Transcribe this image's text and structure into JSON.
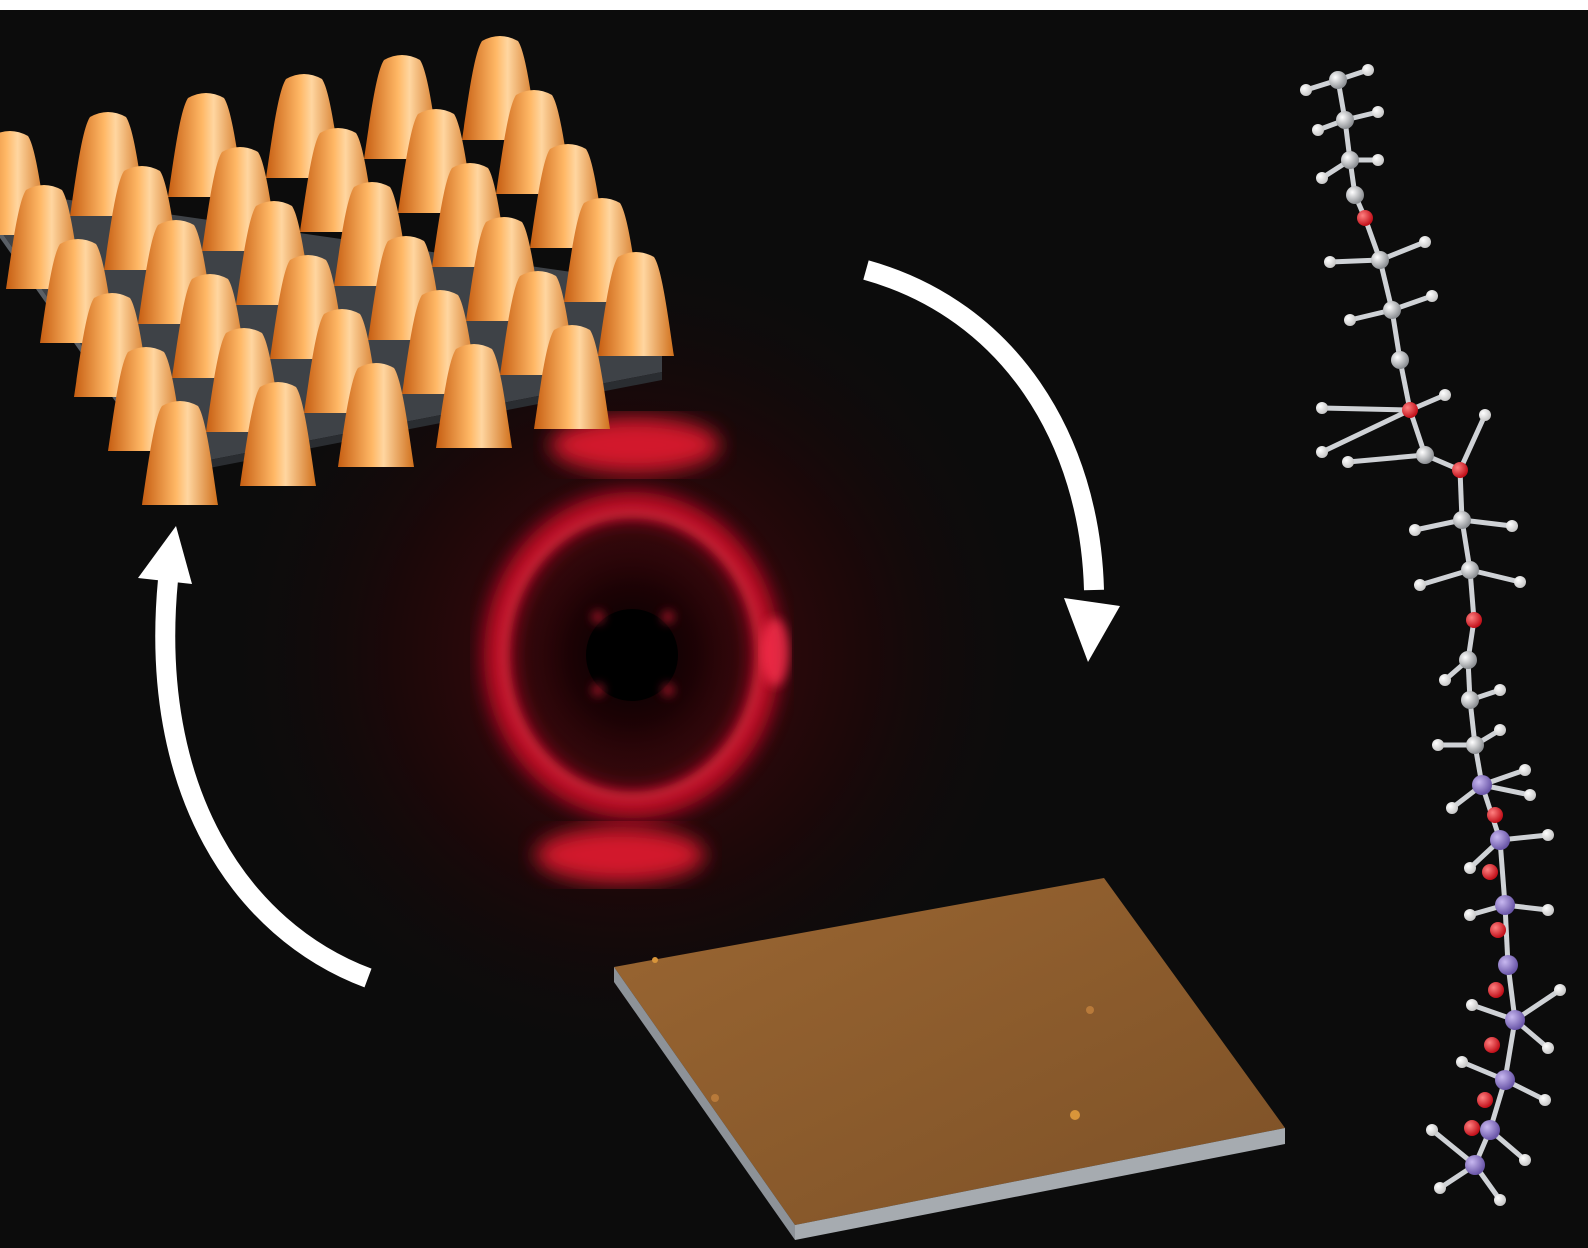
{
  "colors": {
    "background": "#0c0c0c",
    "top_strip": "#ffffff",
    "pillar_orange": "#f3902a",
    "pillar_highlight": "#ffd6a0",
    "substrate_gray": "#3e4247",
    "film_brown": "#8a5a2c",
    "film_edge": "#8d9298",
    "diffraction_red": "#ff1030",
    "arrow": "#ffffff",
    "atom_carbon": "#b9bcc0",
    "atom_hydrogen": "#f2f2f2",
    "atom_oxygen": "#e0202a",
    "atom_silicon": "#8e78c8"
  },
  "icons": {
    "pillar_array": "nanopillar-array-icon",
    "flat_film": "flat-film-icon",
    "diffraction": "diffraction-pattern-icon",
    "arrow_right": "curved-arrow-down-icon",
    "arrow_left": "curved-arrow-up-icon",
    "molecule": "molecule-model-icon"
  }
}
